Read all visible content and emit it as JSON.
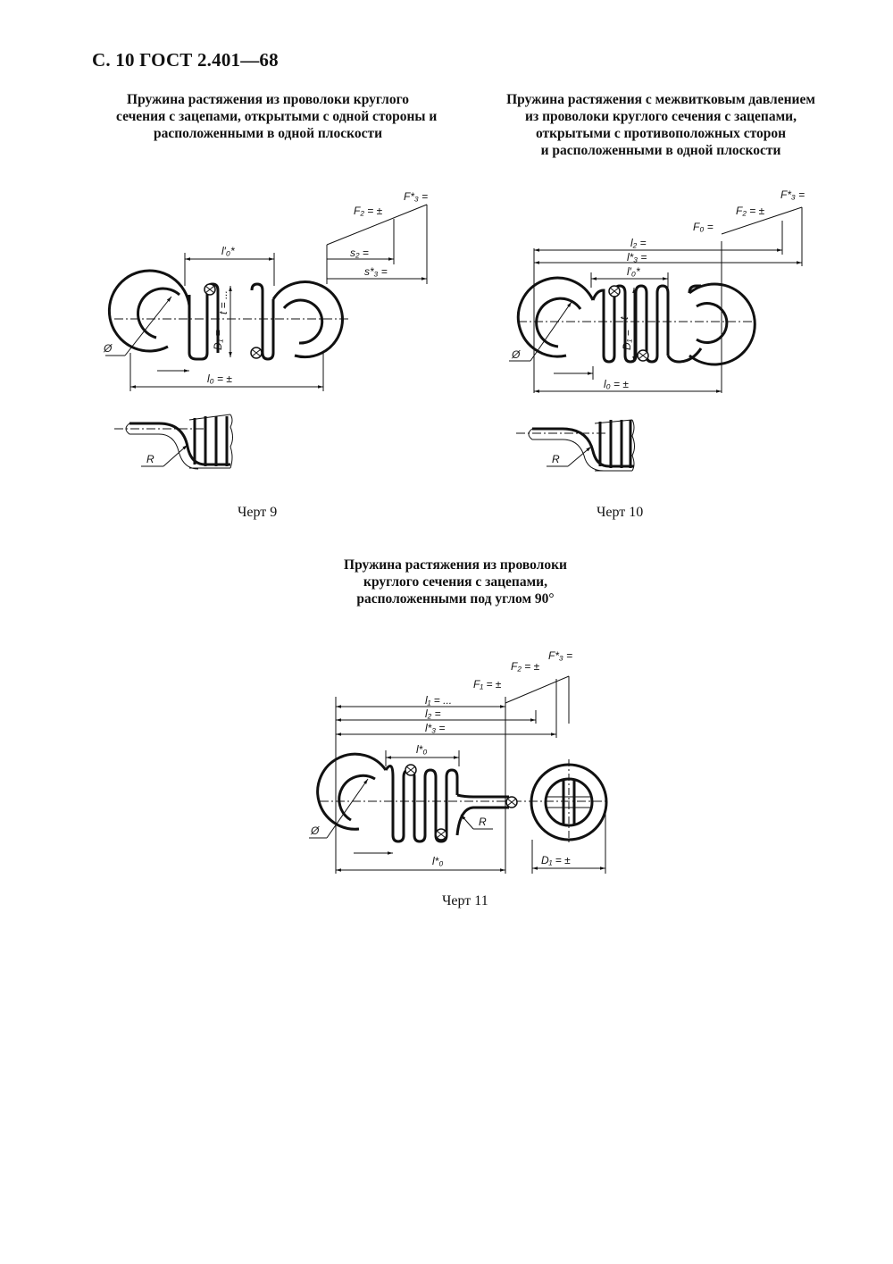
{
  "page_header": "С. 10 ГОСТ 2.401—68",
  "fig9": {
    "caption": [
      "Пружина растяжения из проволоки круглого",
      "сечения с зацепами, открытыми с одной стороны и",
      "расположенными в одной плоскости"
    ],
    "label": "Черт 9",
    "marks": {
      "l0p": "l′₀*",
      "l0": "l₀ =    ±",
      "F2": "F₂ =  ±",
      "F3": "F*₃ =",
      "s2": "s₂ =",
      "s3": "s*₃ =",
      "D1": "D₁ =",
      "t": "t = ...",
      "dia": "Ø",
      "R": "R"
    }
  },
  "fig10": {
    "caption": [
      "Пружина растяжения с межвитковым давлением",
      "из проволоки круглого сечения с зацепами,",
      "открытыми с противоположных сторон",
      "и расположенными в одной плоскости"
    ],
    "label": "Черт 10",
    "marks": {
      "F0": "F₀ =",
      "F2": "F₂ =  ±",
      "F3": "F*₃ =",
      "l2": "l₂ =",
      "l3": "l*₃ =",
      "l0p": "l′₀*",
      "l0": "l₀ =    ±",
      "D1": "D₁ =",
      "t": "t",
      "dia": "Ø",
      "R": "R"
    }
  },
  "fig11": {
    "caption": [
      "Пружина растяжения из проволоки",
      "круглого сечения с зацепами,",
      "расположенными под углом 90°"
    ],
    "label": "Черт 11",
    "marks": {
      "F1": "F₁ =  ±",
      "F2": "F₂ =  ±",
      "F3": "F*₃ =",
      "l1": "l₁ = ...",
      "l2": "l₂ =",
      "l3": "l*₃ =",
      "l0top": "l*₀",
      "l0bot": "l*₀",
      "D1": "D₁ =  ±",
      "dia": "Ø",
      "R": "R"
    }
  }
}
